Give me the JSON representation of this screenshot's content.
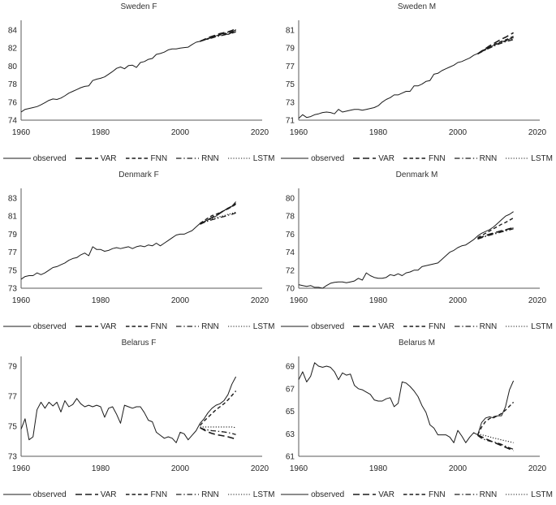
{
  "colors": {
    "line": "#1a1a1a",
    "axis": "#595959",
    "text": "#262626"
  },
  "legend": {
    "items": [
      {
        "name": "observed",
        "label": "observed",
        "style": "solid"
      },
      {
        "name": "VAR",
        "label": "VAR",
        "style": "long-dash"
      },
      {
        "name": "FNN",
        "label": "FNN",
        "style": "dash"
      },
      {
        "name": "RNN",
        "label": "RNN",
        "style": "dash-dot"
      },
      {
        "name": "LSTM",
        "label": "LSTM",
        "style": "dot"
      }
    ]
  },
  "chart_data": [
    {
      "type": "line",
      "title": "Sweden F",
      "xlabel": "",
      "ylabel": "",
      "x": {
        "min": 1960,
        "max": 2020,
        "ticks": [
          1960,
          1980,
          2000,
          2020
        ]
      },
      "y": {
        "min": 74,
        "max": 84,
        "ticks": [
          74,
          76,
          78,
          80,
          82,
          84
        ]
      },
      "series": [
        {
          "name": "observed",
          "style": "solid",
          "start_year": 1960,
          "values": [
            74.9,
            75.2,
            75.3,
            75.4,
            75.5,
            75.7,
            75.95,
            76.2,
            76.35,
            76.3,
            76.45,
            76.7,
            77.0,
            77.2,
            77.4,
            77.6,
            77.75,
            77.8,
            78.4,
            78.55,
            78.65,
            78.8,
            79.1,
            79.4,
            79.75,
            79.9,
            79.7,
            80.05,
            80.1,
            79.85,
            80.4,
            80.5,
            80.75,
            80.85,
            81.3,
            81.4,
            81.55,
            81.8,
            81.9,
            81.9,
            82.0,
            82.05,
            82.1,
            82.4,
            82.65,
            82.75,
            82.9,
            83.0,
            83.2,
            83.35,
            83.5,
            83.6,
            83.5,
            83.7,
            84.05
          ]
        },
        {
          "name": "VAR",
          "style": "long-dash",
          "start_year": 2005,
          "values": [
            82.75,
            82.95,
            83.15,
            83.3,
            83.45,
            83.6,
            83.7,
            83.8,
            83.95,
            84.15
          ]
        },
        {
          "name": "FNN",
          "style": "dash",
          "start_year": 2005,
          "values": [
            82.75,
            82.9,
            83.05,
            83.2,
            83.35,
            83.45,
            83.55,
            83.65,
            83.8,
            83.95
          ]
        },
        {
          "name": "RNN",
          "style": "dash-dot",
          "start_year": 2005,
          "values": [
            82.75,
            82.88,
            83.0,
            83.12,
            83.25,
            83.35,
            83.45,
            83.55,
            83.65,
            83.8
          ]
        },
        {
          "name": "LSTM",
          "style": "dot",
          "start_year": 2005,
          "values": [
            82.75,
            82.92,
            83.08,
            83.22,
            83.36,
            83.5,
            83.62,
            83.72,
            83.85,
            84.0
          ]
        }
      ]
    },
    {
      "type": "line",
      "title": "Sweden M",
      "xlabel": "",
      "ylabel": "",
      "x": {
        "min": 1960,
        "max": 2020,
        "ticks": [
          1960,
          1980,
          2000,
          2020
        ]
      },
      "y": {
        "min": 71,
        "max": 81,
        "ticks": [
          71,
          73,
          75,
          77,
          79,
          81
        ]
      },
      "series": [
        {
          "name": "observed",
          "style": "solid",
          "start_year": 1960,
          "values": [
            71.2,
            71.6,
            71.3,
            71.4,
            71.6,
            71.7,
            71.85,
            71.9,
            71.85,
            71.7,
            72.2,
            71.9,
            72.0,
            72.1,
            72.2,
            72.2,
            72.1,
            72.2,
            72.3,
            72.4,
            72.6,
            73.0,
            73.3,
            73.5,
            73.8,
            73.8,
            74.0,
            74.2,
            74.2,
            74.8,
            74.8,
            75.0,
            75.3,
            75.4,
            76.1,
            76.2,
            76.5,
            76.7,
            76.9,
            77.1,
            77.4,
            77.5,
            77.7,
            77.9,
            78.2,
            78.4,
            78.7,
            78.9,
            79.1,
            79.3,
            79.5,
            79.7,
            79.8,
            80.0,
            80.15
          ]
        },
        {
          "name": "VAR",
          "style": "long-dash",
          "start_year": 2005,
          "values": [
            78.35,
            78.65,
            78.95,
            79.25,
            79.5,
            79.75,
            80.0,
            80.2,
            80.45,
            80.7
          ]
        },
        {
          "name": "FNN",
          "style": "dash",
          "start_year": 2005,
          "values": [
            78.35,
            78.6,
            78.85,
            79.1,
            79.35,
            79.55,
            79.75,
            79.9,
            80.1,
            80.3
          ]
        },
        {
          "name": "RNN",
          "style": "dash-dot",
          "start_year": 2005,
          "values": [
            78.35,
            78.58,
            78.8,
            79.0,
            79.2,
            79.4,
            79.55,
            79.7,
            79.82,
            79.95
          ]
        },
        {
          "name": "LSTM",
          "style": "dot",
          "start_year": 2005,
          "values": [
            78.35,
            78.6,
            78.82,
            79.05,
            79.28,
            79.45,
            79.62,
            79.75,
            79.88,
            80.05
          ]
        }
      ]
    },
    {
      "type": "line",
      "title": "Denmark F",
      "xlabel": "",
      "ylabel": "",
      "x": {
        "min": 1960,
        "max": 2020,
        "ticks": [
          1960,
          1980,
          2000,
          2020
        ]
      },
      "y": {
        "min": 73,
        "max": 83,
        "ticks": [
          73,
          75,
          77,
          79,
          81,
          83
        ]
      },
      "series": [
        {
          "name": "observed",
          "style": "solid",
          "start_year": 1960,
          "values": [
            74.0,
            74.3,
            74.4,
            74.4,
            74.7,
            74.5,
            74.7,
            75.0,
            75.3,
            75.4,
            75.6,
            75.8,
            76.1,
            76.3,
            76.4,
            76.7,
            76.9,
            76.6,
            77.6,
            77.3,
            77.3,
            77.1,
            77.2,
            77.4,
            77.5,
            77.4,
            77.5,
            77.6,
            77.4,
            77.6,
            77.7,
            77.6,
            77.8,
            77.7,
            78.0,
            77.7,
            78.0,
            78.3,
            78.6,
            78.9,
            79.0,
            79.0,
            79.2,
            79.4,
            79.8,
            80.2,
            80.4,
            80.6,
            80.8,
            81.0,
            81.3,
            81.6,
            81.9,
            82.1,
            82.6
          ]
        },
        {
          "name": "VAR",
          "style": "long-dash",
          "start_year": 2005,
          "values": [
            80.1,
            80.35,
            80.6,
            80.85,
            81.1,
            81.35,
            81.6,
            81.85,
            82.1,
            82.4
          ]
        },
        {
          "name": "FNN",
          "style": "dash",
          "start_year": 2005,
          "values": [
            80.2,
            80.5,
            80.8,
            81.05,
            81.2,
            81.4,
            81.6,
            81.8,
            82.05,
            82.3
          ]
        },
        {
          "name": "RNN",
          "style": "dash-dot",
          "start_year": 2005,
          "values": [
            80.1,
            80.3,
            80.45,
            80.6,
            80.7,
            80.85,
            80.95,
            81.1,
            81.2,
            81.35
          ]
        },
        {
          "name": "LSTM",
          "style": "dot",
          "start_year": 2005,
          "values": [
            80.15,
            80.35,
            80.55,
            80.7,
            80.8,
            80.95,
            81.05,
            81.2,
            81.3,
            81.45
          ]
        }
      ]
    },
    {
      "type": "line",
      "title": "Denmark M",
      "xlabel": "",
      "ylabel": "",
      "x": {
        "min": 1960,
        "max": 2020,
        "ticks": [
          1960,
          1980,
          2000,
          2020
        ]
      },
      "y": {
        "min": 70,
        "max": 80,
        "ticks": [
          70,
          72,
          74,
          76,
          78,
          80
        ]
      },
      "series": [
        {
          "name": "observed",
          "style": "solid",
          "start_year": 1960,
          "values": [
            70.4,
            70.3,
            70.2,
            70.3,
            70.1,
            70.1,
            70.0,
            70.3,
            70.55,
            70.65,
            70.7,
            70.7,
            70.6,
            70.7,
            70.8,
            71.1,
            70.9,
            71.7,
            71.4,
            71.2,
            71.1,
            71.1,
            71.2,
            71.5,
            71.4,
            71.6,
            71.4,
            71.7,
            71.8,
            72.0,
            72.0,
            72.4,
            72.5,
            72.6,
            72.7,
            72.8,
            73.2,
            73.6,
            74.0,
            74.2,
            74.5,
            74.7,
            74.8,
            75.1,
            75.4,
            75.8,
            76.1,
            76.3,
            76.5,
            76.8,
            77.2,
            77.6,
            78.0,
            78.2,
            78.5
          ]
        },
        {
          "name": "VAR",
          "style": "long-dash",
          "start_year": 2005,
          "values": [
            75.5,
            75.68,
            75.85,
            76.0,
            76.12,
            76.25,
            76.38,
            76.48,
            76.6,
            76.7
          ]
        },
        {
          "name": "FNN",
          "style": "dash",
          "start_year": 2005,
          "values": [
            75.6,
            75.85,
            76.1,
            76.35,
            76.6,
            76.85,
            77.1,
            77.3,
            77.55,
            77.8
          ]
        },
        {
          "name": "RNN",
          "style": "dash-dot",
          "start_year": 2005,
          "values": [
            75.45,
            75.6,
            75.75,
            75.88,
            76.0,
            76.12,
            76.25,
            76.35,
            76.48,
            76.6
          ]
        },
        {
          "name": "LSTM",
          "style": "dot",
          "start_year": 2005,
          "values": [
            75.5,
            75.65,
            75.8,
            75.95,
            76.08,
            76.2,
            76.32,
            76.45,
            76.58,
            76.7
          ]
        }
      ]
    },
    {
      "type": "line",
      "title": "Belarus F",
      "xlabel": "",
      "ylabel": "",
      "x": {
        "min": 1960,
        "max": 2020,
        "ticks": [
          1960,
          1980,
          2000,
          2020
        ]
      },
      "y": {
        "min": 73,
        "max": 79,
        "ticks": [
          73,
          75,
          77,
          79
        ]
      },
      "series": [
        {
          "name": "observed",
          "style": "solid",
          "start_year": 1960,
          "values": [
            74.8,
            75.5,
            74.1,
            74.3,
            76.1,
            76.6,
            76.2,
            76.6,
            76.35,
            76.6,
            75.95,
            76.7,
            76.3,
            76.45,
            76.85,
            76.5,
            76.3,
            76.4,
            76.3,
            76.4,
            76.3,
            75.6,
            76.2,
            76.3,
            75.8,
            75.2,
            76.4,
            76.3,
            76.2,
            76.3,
            76.3,
            75.9,
            75.4,
            75.3,
            74.6,
            74.4,
            74.2,
            74.3,
            74.2,
            73.9,
            74.6,
            74.5,
            74.1,
            74.4,
            74.7,
            75.2,
            75.5,
            75.9,
            76.2,
            76.4,
            76.5,
            76.7,
            77.1,
            77.8,
            78.3
          ]
        },
        {
          "name": "VAR",
          "style": "long-dash",
          "start_year": 2005,
          "values": [
            74.9,
            74.75,
            74.62,
            74.52,
            74.45,
            74.4,
            74.35,
            74.3,
            74.22,
            74.15
          ]
        },
        {
          "name": "FNN",
          "style": "dash",
          "start_year": 2005,
          "values": [
            75.05,
            75.35,
            75.6,
            75.85,
            76.1,
            76.3,
            76.5,
            76.75,
            77.05,
            77.35
          ]
        },
        {
          "name": "RNN",
          "style": "dash-dot",
          "start_year": 2005,
          "values": [
            74.9,
            74.8,
            74.75,
            74.7,
            74.68,
            74.65,
            74.62,
            74.58,
            74.52,
            74.45
          ]
        },
        {
          "name": "LSTM",
          "style": "dot",
          "start_year": 2005,
          "values": [
            74.95,
            74.95,
            74.95,
            74.95,
            74.95,
            74.95,
            74.95,
            74.95,
            74.95,
            74.9
          ]
        }
      ]
    },
    {
      "type": "line",
      "title": "Belarus M",
      "xlabel": "",
      "ylabel": "",
      "x": {
        "min": 1960,
        "max": 2020,
        "ticks": [
          1960,
          1980,
          2000,
          2020
        ]
      },
      "y": {
        "min": 61,
        "max": 69,
        "ticks": [
          61,
          63,
          65,
          67,
          69
        ]
      },
      "series": [
        {
          "name": "observed",
          "style": "solid",
          "start_year": 1960,
          "values": [
            67.8,
            68.5,
            67.6,
            68.1,
            69.3,
            69.0,
            68.9,
            69.0,
            68.9,
            68.5,
            67.8,
            68.4,
            68.2,
            68.3,
            67.3,
            67.0,
            66.9,
            66.7,
            66.5,
            66.0,
            65.9,
            65.9,
            66.1,
            66.2,
            65.4,
            65.7,
            67.6,
            67.5,
            67.2,
            66.8,
            66.3,
            65.5,
            64.9,
            63.8,
            63.5,
            62.9,
            62.9,
            62.9,
            62.7,
            62.2,
            63.3,
            62.8,
            62.2,
            62.7,
            63.1,
            62.9,
            64.0,
            64.4,
            64.5,
            64.4,
            64.6,
            64.6,
            65.4,
            66.9,
            67.7
          ]
        },
        {
          "name": "VAR",
          "style": "long-dash",
          "start_year": 2005,
          "values": [
            62.9,
            62.72,
            62.55,
            62.4,
            62.25,
            62.1,
            61.95,
            61.8,
            61.65,
            61.5
          ]
        },
        {
          "name": "FNN",
          "style": "dash",
          "start_year": 2005,
          "values": [
            62.9,
            63.6,
            64.1,
            64.35,
            64.5,
            64.6,
            64.8,
            65.1,
            65.45,
            65.8
          ]
        },
        {
          "name": "RNN",
          "style": "dash-dot",
          "start_year": 2005,
          "values": [
            62.85,
            62.6,
            62.45,
            62.35,
            62.28,
            62.18,
            62.05,
            61.9,
            61.75,
            61.62
          ]
        },
        {
          "name": "LSTM",
          "style": "dot",
          "start_year": 2005,
          "values": [
            63.0,
            62.9,
            62.82,
            62.72,
            62.62,
            62.55,
            62.45,
            62.38,
            62.3,
            62.2
          ]
        }
      ]
    }
  ]
}
